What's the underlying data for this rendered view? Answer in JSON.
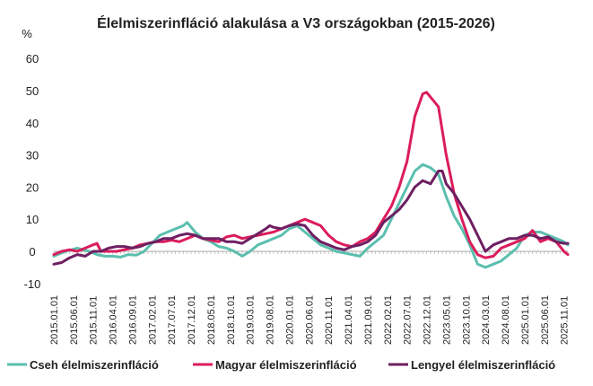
{
  "chart_data": {
    "type": "line",
    "title": "Élelmiszerinfláció alakulása a V3 országokban (2015-2026)",
    "ylabel": "%",
    "xlabel": "",
    "ylim": [
      -10,
      60
    ],
    "yticks": [
      -10,
      0,
      10,
      20,
      30,
      40,
      50,
      60
    ],
    "grid": false,
    "legend_position": "bottom",
    "tick_labels": [
      "2015.01.01",
      "2015.06.01",
      "2015.11.01",
      "2016.04.01",
      "2016.09.01",
      "2017.02.01",
      "2017.07.01",
      "2017.12.01",
      "2018.05.01",
      "2018.10.01",
      "2019.03.01",
      "2019.08.01",
      "2020.01.01",
      "2020.06.01",
      "2020.11.01",
      "2021.04.01",
      "2021.09.01",
      "2022.02.01",
      "2022.07.01",
      "2022.12.01",
      "2023.05.01",
      "2023.10.01",
      "2024.03.01",
      "2024.08.01",
      "2025.01.01",
      "2025.06.01",
      "2025.11.01"
    ],
    "tick_months": [
      0,
      5,
      10,
      15,
      20,
      25,
      30,
      35,
      40,
      45,
      50,
      55,
      60,
      65,
      70,
      75,
      80,
      85,
      90,
      95,
      100,
      105,
      110,
      115,
      120,
      125,
      130
    ],
    "x_month_range": [
      0,
      131
    ],
    "series": [
      {
        "name": "Cseh élelmiszerinfláció",
        "color": "#5bbfae",
        "points": [
          [
            0,
            -1.5
          ],
          [
            3,
            0
          ],
          [
            6,
            1
          ],
          [
            9,
            0
          ],
          [
            11,
            -1
          ],
          [
            13,
            -1.5
          ],
          [
            15,
            -1.5
          ],
          [
            17,
            -1.8
          ],
          [
            19,
            -1
          ],
          [
            21,
            -1.2
          ],
          [
            23,
            0
          ],
          [
            25,
            2.5
          ],
          [
            27,
            5
          ],
          [
            29,
            6
          ],
          [
            31,
            7
          ],
          [
            33,
            8
          ],
          [
            34,
            9
          ],
          [
            36,
            6
          ],
          [
            38,
            4
          ],
          [
            40,
            3
          ],
          [
            42,
            1.5
          ],
          [
            44,
            1
          ],
          [
            46,
            0
          ],
          [
            48,
            -1.5
          ],
          [
            50,
            0
          ],
          [
            52,
            2
          ],
          [
            54,
            3
          ],
          [
            56,
            4
          ],
          [
            58,
            5
          ],
          [
            60,
            7
          ],
          [
            62,
            8
          ],
          [
            64,
            6
          ],
          [
            66,
            4
          ],
          [
            68,
            2
          ],
          [
            70,
            1
          ],
          [
            72,
            0
          ],
          [
            74,
            -0.5
          ],
          [
            76,
            -1
          ],
          [
            78,
            -1.5
          ],
          [
            80,
            1
          ],
          [
            82,
            3
          ],
          [
            84,
            5
          ],
          [
            86,
            10
          ],
          [
            88,
            15
          ],
          [
            90,
            20
          ],
          [
            92,
            25
          ],
          [
            94,
            27
          ],
          [
            96,
            26
          ],
          [
            98,
            24
          ],
          [
            100,
            17
          ],
          [
            102,
            11
          ],
          [
            104,
            7
          ],
          [
            106,
            2
          ],
          [
            108,
            -4
          ],
          [
            110,
            -5
          ],
          [
            112,
            -4
          ],
          [
            114,
            -3
          ],
          [
            116,
            -1
          ],
          [
            118,
            1
          ],
          [
            120,
            5
          ],
          [
            122,
            6
          ],
          [
            124,
            6
          ],
          [
            126,
            5
          ],
          [
            128,
            4
          ],
          [
            130,
            3
          ],
          [
            131,
            2
          ]
        ]
      },
      {
        "name": "Magyar élelmiszerinfláció",
        "color": "#dc1c5c",
        "points": [
          [
            0,
            -1
          ],
          [
            2,
            0
          ],
          [
            4,
            0.5
          ],
          [
            6,
            0
          ],
          [
            8,
            1
          ],
          [
            10,
            2
          ],
          [
            11,
            2.5
          ],
          [
            12,
            0
          ],
          [
            14,
            0
          ],
          [
            16,
            0
          ],
          [
            18,
            0.5
          ],
          [
            20,
            1
          ],
          [
            22,
            2
          ],
          [
            24,
            2.5
          ],
          [
            26,
            3
          ],
          [
            28,
            3
          ],
          [
            30,
            3.5
          ],
          [
            32,
            3
          ],
          [
            34,
            4
          ],
          [
            36,
            5
          ],
          [
            38,
            4
          ],
          [
            40,
            3.5
          ],
          [
            42,
            3
          ],
          [
            44,
            4.5
          ],
          [
            46,
            5
          ],
          [
            48,
            4
          ],
          [
            50,
            4.5
          ],
          [
            52,
            5
          ],
          [
            54,
            5.5
          ],
          [
            56,
            6
          ],
          [
            58,
            7
          ],
          [
            60,
            8
          ],
          [
            62,
            9
          ],
          [
            64,
            10
          ],
          [
            66,
            9
          ],
          [
            68,
            8
          ],
          [
            70,
            5
          ],
          [
            72,
            3
          ],
          [
            74,
            2
          ],
          [
            76,
            1.5
          ],
          [
            78,
            3
          ],
          [
            80,
            4
          ],
          [
            82,
            6
          ],
          [
            84,
            10
          ],
          [
            86,
            14
          ],
          [
            88,
            20
          ],
          [
            90,
            28
          ],
          [
            92,
            42
          ],
          [
            94,
            49
          ],
          [
            95,
            49.5
          ],
          [
            96,
            48
          ],
          [
            98,
            45
          ],
          [
            100,
            30
          ],
          [
            102,
            18
          ],
          [
            104,
            10
          ],
          [
            106,
            3
          ],
          [
            108,
            -1
          ],
          [
            110,
            -2
          ],
          [
            112,
            -1.5
          ],
          [
            114,
            1
          ],
          [
            116,
            2
          ],
          [
            118,
            3
          ],
          [
            120,
            4
          ],
          [
            122,
            6.5
          ],
          [
            124,
            3
          ],
          [
            126,
            4
          ],
          [
            128,
            3
          ],
          [
            130,
            0
          ],
          [
            131,
            -1
          ]
        ]
      },
      {
        "name": "Lengyel élelmiszerinfláció",
        "color": "#6e1f62",
        "points": [
          [
            0,
            -4
          ],
          [
            2,
            -3.5
          ],
          [
            4,
            -2
          ],
          [
            6,
            -1
          ],
          [
            8,
            -1.5
          ],
          [
            10,
            0
          ],
          [
            12,
            0
          ],
          [
            14,
            1
          ],
          [
            16,
            1.5
          ],
          [
            18,
            1.5
          ],
          [
            20,
            1
          ],
          [
            22,
            1.5
          ],
          [
            24,
            2.5
          ],
          [
            26,
            3
          ],
          [
            28,
            4
          ],
          [
            30,
            4
          ],
          [
            32,
            5
          ],
          [
            34,
            5.5
          ],
          [
            36,
            5
          ],
          [
            38,
            4
          ],
          [
            40,
            4
          ],
          [
            42,
            4
          ],
          [
            44,
            3
          ],
          [
            46,
            3
          ],
          [
            48,
            2.5
          ],
          [
            50,
            4
          ],
          [
            52,
            5.5
          ],
          [
            54,
            7
          ],
          [
            55,
            8
          ],
          [
            56,
            7.5
          ],
          [
            58,
            7
          ],
          [
            60,
            8
          ],
          [
            62,
            8.5
          ],
          [
            64,
            8
          ],
          [
            66,
            5
          ],
          [
            68,
            3
          ],
          [
            70,
            2
          ],
          [
            72,
            1
          ],
          [
            74,
            0.5
          ],
          [
            76,
            1.5
          ],
          [
            78,
            2
          ],
          [
            80,
            3
          ],
          [
            82,
            5
          ],
          [
            84,
            9
          ],
          [
            86,
            11
          ],
          [
            88,
            13
          ],
          [
            90,
            16
          ],
          [
            92,
            20
          ],
          [
            94,
            22
          ],
          [
            96,
            21
          ],
          [
            98,
            25
          ],
          [
            99,
            25
          ],
          [
            100,
            21
          ],
          [
            102,
            18
          ],
          [
            104,
            14
          ],
          [
            106,
            10
          ],
          [
            108,
            5
          ],
          [
            110,
            0
          ],
          [
            112,
            2
          ],
          [
            114,
            3
          ],
          [
            116,
            4
          ],
          [
            118,
            4
          ],
          [
            120,
            5
          ],
          [
            122,
            5
          ],
          [
            124,
            4
          ],
          [
            126,
            4.5
          ],
          [
            128,
            3
          ],
          [
            130,
            2.5
          ],
          [
            131,
            2.5
          ]
        ]
      }
    ]
  }
}
